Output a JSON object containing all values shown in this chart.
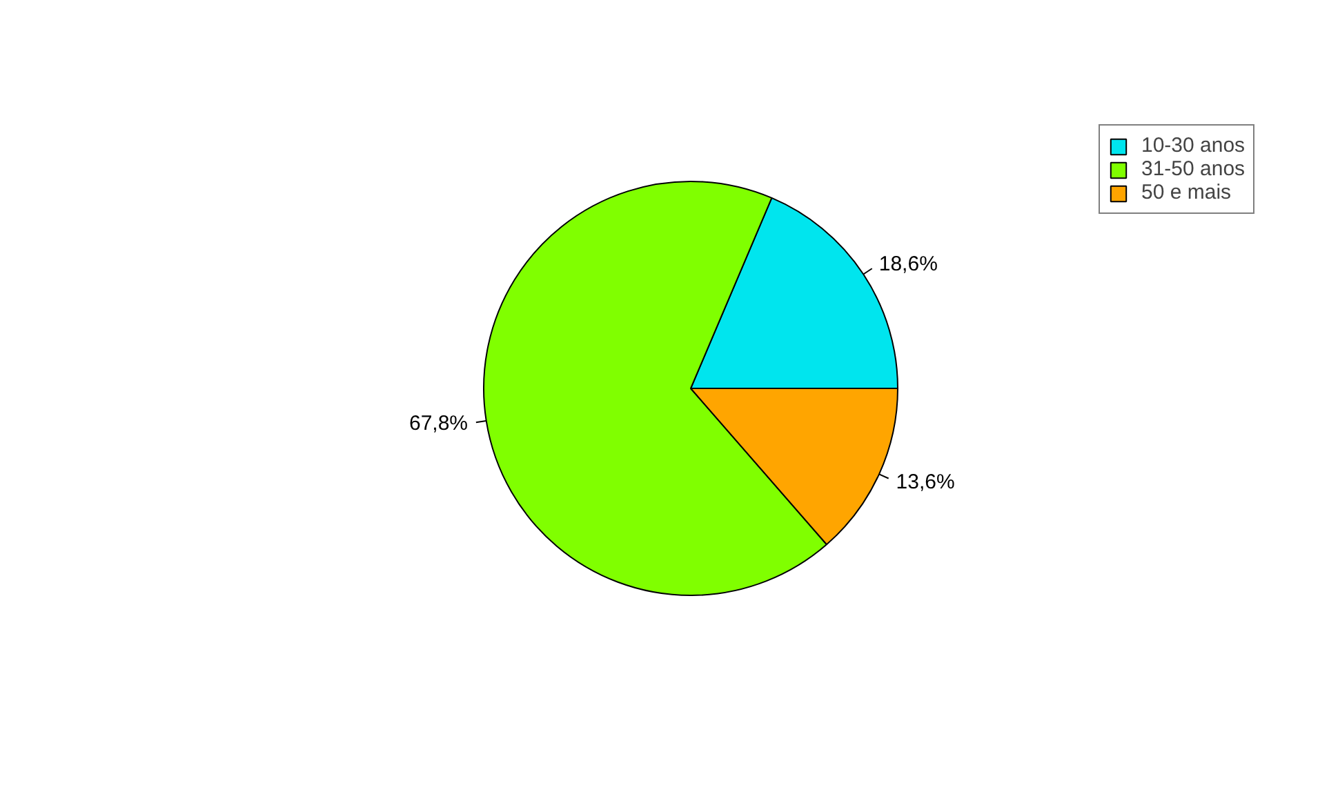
{
  "chart_data": {
    "type": "pie",
    "categories": [
      "10-30 anos",
      "31-50 anos",
      "50 e mais"
    ],
    "values": [
      18.6,
      67.8,
      13.6
    ],
    "colors": [
      "#00e5ee",
      "#80ff00",
      "#ffa500"
    ],
    "value_labels": [
      "18,6%",
      "67,8%",
      "13,6%"
    ],
    "legend": "top right"
  }
}
